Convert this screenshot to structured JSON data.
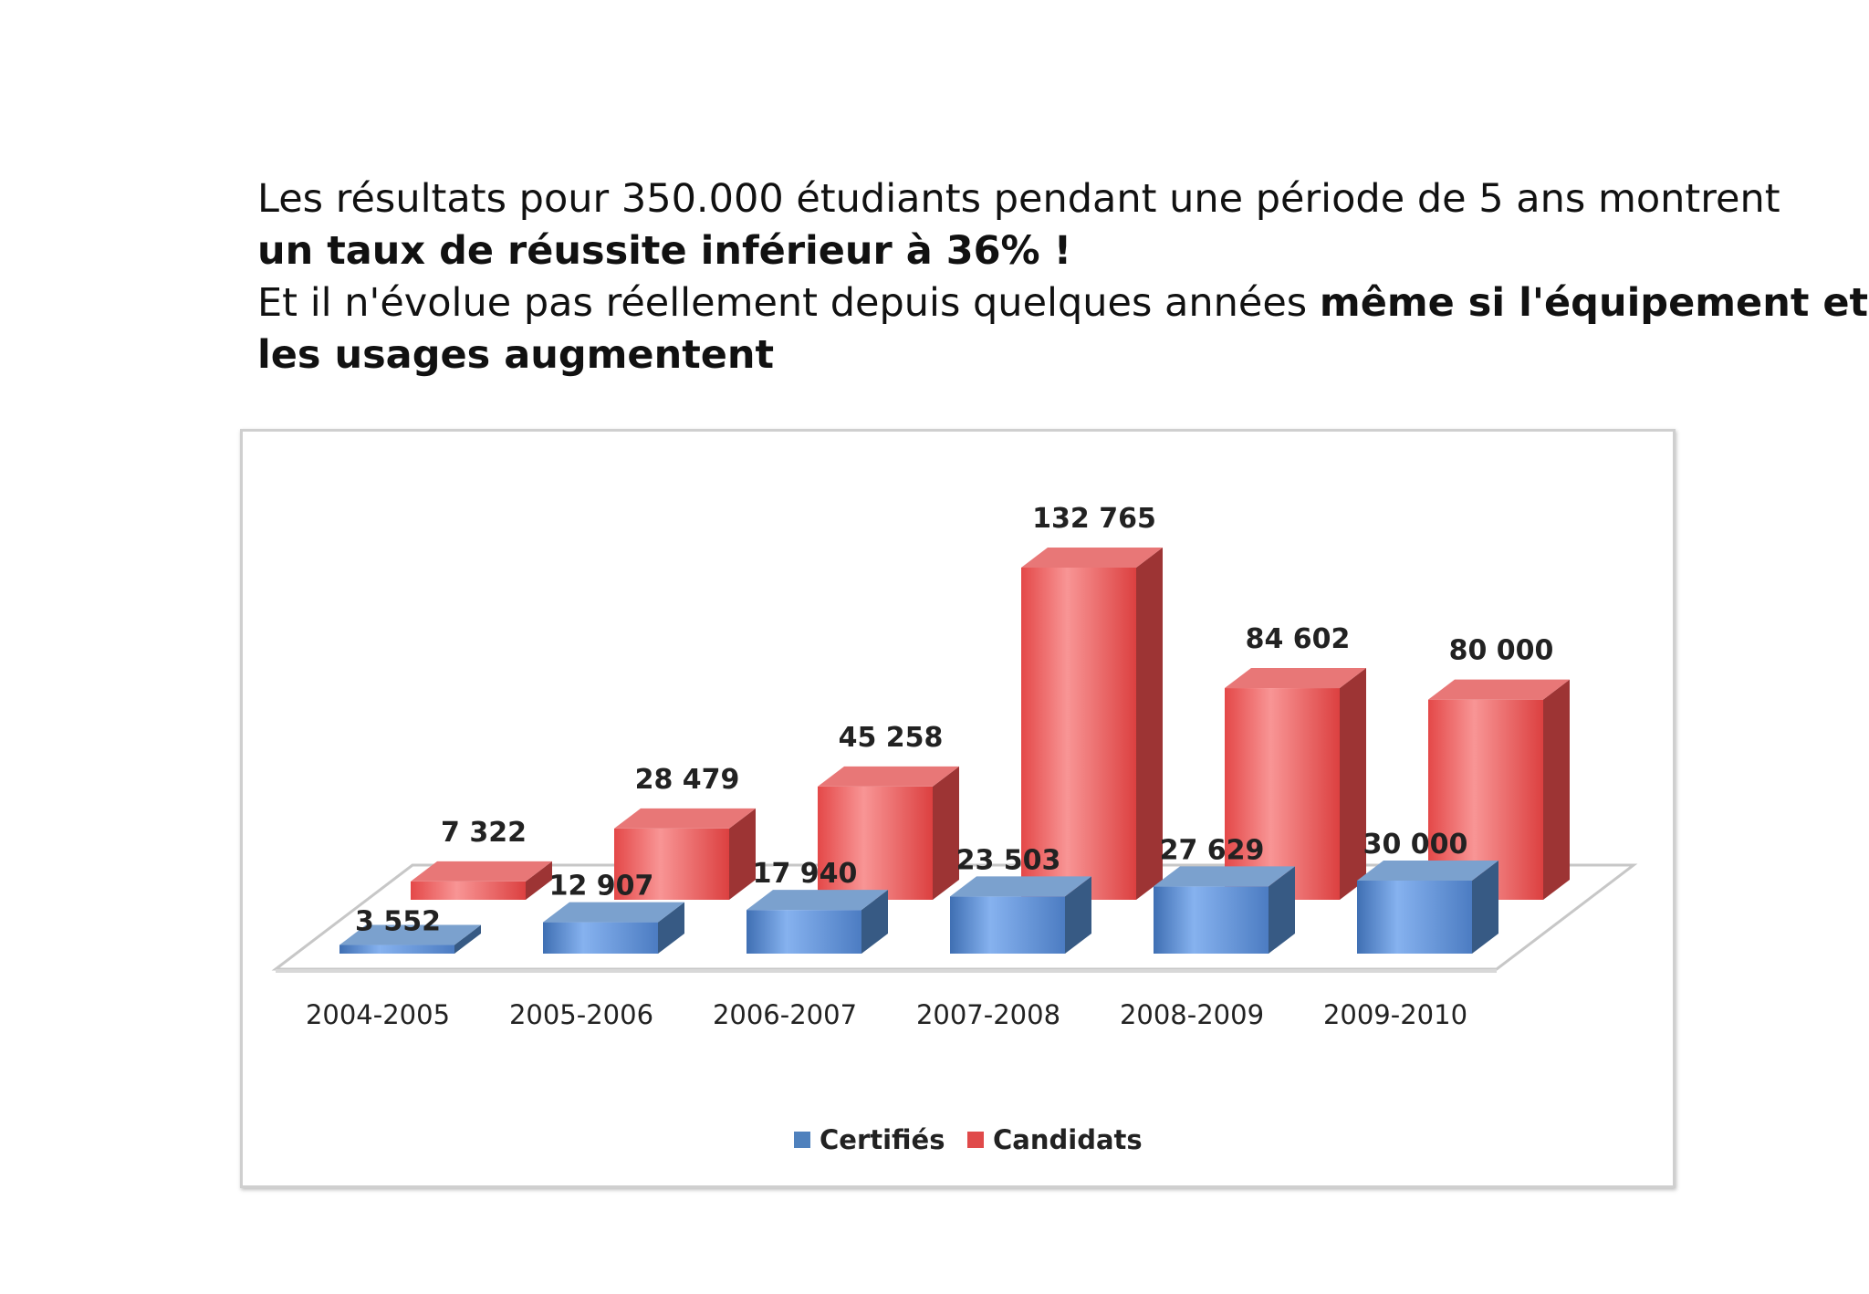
{
  "intro": {
    "line1": "Les résultats pour 350.000 étudiants pendant une période de 5 ans montrent",
    "line2": "un taux de réussite inférieur à 36% !",
    "line3_normal": "Et il n'évolue pas réellement depuis quelques années ",
    "line3_bold": "même si l'équipement et",
    "line4": "les usages augmentent"
  },
  "chart_data": {
    "type": "bar",
    "style": "3d-column",
    "title": "",
    "xlabel": "",
    "ylabel": "",
    "categories": [
      "2004-2005",
      "2005-2006",
      "2006-2007",
      "2007-2008",
      "2008-2009",
      "2009-2010"
    ],
    "series": [
      {
        "name": "Certifiés",
        "values": [
          3552,
          12907,
          17940,
          23503,
          27629,
          30000
        ],
        "labels": [
          "3 552",
          "12 907",
          "17 940",
          "23 503",
          "27 629",
          "30 000"
        ],
        "color": "#4f81bd"
      },
      {
        "name": "Candidats",
        "values": [
          7322,
          28479,
          45258,
          132765,
          84602,
          80000
        ],
        "labels": [
          "7 322",
          "28 479",
          "45 258",
          "132 765",
          "84 602",
          "80 000"
        ],
        "color": "#e04a4a"
      }
    ],
    "ylim": [
      0,
      140000
    ],
    "grid": false,
    "legend": "bottom"
  }
}
